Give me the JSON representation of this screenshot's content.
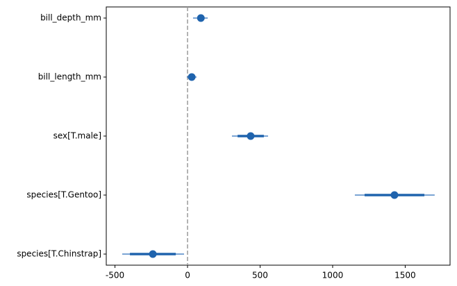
{
  "chart_data": {
    "type": "forest",
    "categories": [
      "bill_depth_mm",
      "bill_length_mm",
      "sex[T.male]",
      "species[T.Gentoo]",
      "species[T.Chinstrap]"
    ],
    "values": [
      92,
      29,
      435,
      1426,
      -239
    ],
    "outer_lower": [
      38,
      -5,
      306,
      1153,
      -450
    ],
    "outer_upper": [
      139,
      62,
      555,
      1703,
      -24
    ],
    "inner_lower": [
      70,
      10,
      345,
      1220,
      -397
    ],
    "inner_upper": [
      115,
      48,
      526,
      1632,
      -81
    ],
    "color": "#1f63ad",
    "outer_color": "#4f86c6",
    "reference_line": 0,
    "reference_color": "#999999",
    "xlim": [
      -560,
      1809
    ],
    "xticks": [
      -500,
      0,
      500,
      1000,
      1500
    ]
  }
}
